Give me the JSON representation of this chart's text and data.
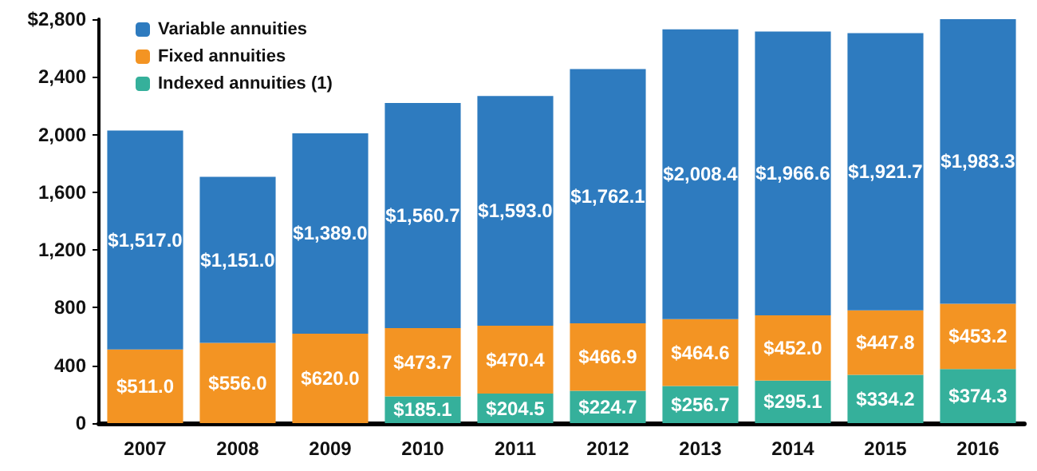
{
  "chart_data": {
    "type": "bar",
    "stacked": true,
    "categories": [
      "2007",
      "2008",
      "2009",
      "2010",
      "2011",
      "2012",
      "2013",
      "2014",
      "2015",
      "2016"
    ],
    "series": [
      {
        "name": "Indexed annuities (1)",
        "color": "#35b09b",
        "values": [
          null,
          null,
          null,
          185.1,
          204.5,
          224.7,
          256.7,
          295.1,
          334.2,
          374.3
        ],
        "value_labels": [
          null,
          null,
          null,
          "$185.1",
          "$204.5",
          "$224.7",
          "$256.7",
          "$295.1",
          "$334.2",
          "$374.3"
        ]
      },
      {
        "name": "Fixed annuities",
        "color": "#f39423",
        "values": [
          511.0,
          556.0,
          620.0,
          473.7,
          470.4,
          466.9,
          464.6,
          452.0,
          447.8,
          453.2
        ],
        "value_labels": [
          "$511.0",
          "$556.0",
          "$620.0",
          "$473.7",
          "$470.4",
          "$466.9",
          "$464.6",
          "$452.0",
          "$447.8",
          "$453.2"
        ]
      },
      {
        "name": "Variable annuities",
        "color": "#2e7bbf",
        "values": [
          1517.0,
          1151.0,
          1389.0,
          1560.7,
          1593.0,
          1762.1,
          2008.4,
          1966.6,
          1921.7,
          1983.3
        ],
        "value_labels": [
          "$1,517.0",
          "$1,151.0",
          "$1,389.0",
          "$1,560.7",
          "$1,593.0",
          "$1,762.1",
          "$2,008.4",
          "$1,966.6",
          "$1,921.7",
          "$1,983.3"
        ]
      }
    ],
    "ylim": [
      0,
      2800
    ],
    "yticks": [
      0,
      400,
      800,
      {
        "value": 1200,
        "label": "1,200"
      },
      {
        "value": 1600,
        "label": "1,600"
      },
      {
        "value": 2000,
        "label": "2,000"
      },
      {
        "value": 2400,
        "label": "2,400"
      },
      {
        "value": 2800,
        "label": "$2,800"
      }
    ],
    "legend": "top left",
    "grid": false
  }
}
